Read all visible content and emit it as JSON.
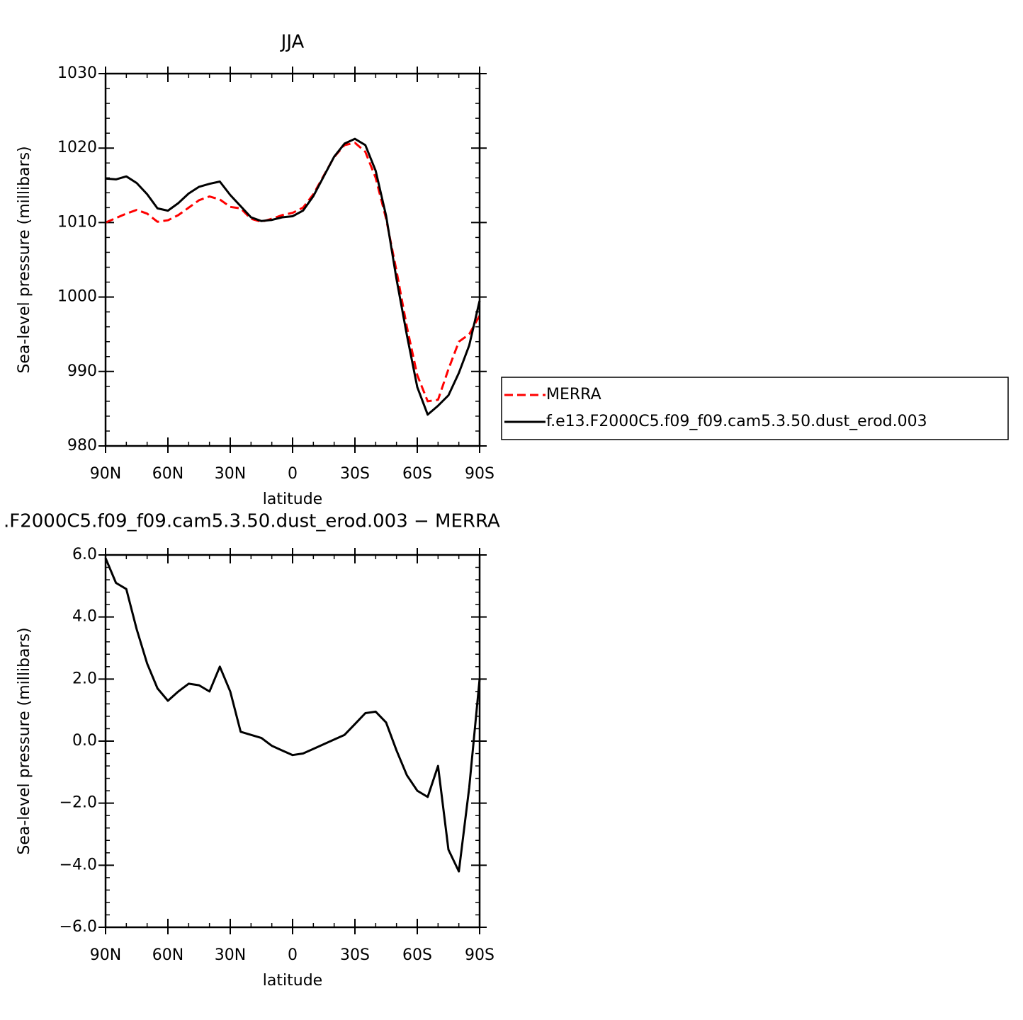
{
  "chart_data": [
    {
      "type": "line",
      "title": "JJA",
      "x_label": "latitude",
      "y_label": "Sea-level pressure (millibars)",
      "x": [
        90,
        85,
        80,
        75,
        70,
        65,
        60,
        55,
        50,
        45,
        40,
        35,
        30,
        25,
        20,
        15,
        10,
        5,
        0,
        -5,
        -10,
        -15,
        -20,
        -25,
        -30,
        -35,
        -40,
        -45,
        -50,
        -55,
        -60,
        -65,
        -70,
        -75,
        -80,
        -85,
        -90
      ],
      "series": [
        {
          "name": "MERRA",
          "color": "#ff0000",
          "line_style": "dashed",
          "values": [
            1010,
            1010.6,
            1011.2,
            1011.7,
            1011.2,
            1010.1,
            1010.3,
            1011,
            1012,
            1013,
            1013.5,
            1013.1,
            1012.1,
            1011.9,
            1010.5,
            1010.1,
            1010.5,
            1011,
            1011.3,
            1012,
            1013.8,
            1016.3,
            1018.8,
            1020.4,
            1020.7,
            1019.5,
            1016,
            1010.5,
            1003.5,
            996,
            989.5,
            986,
            986.2,
            990.3,
            994,
            995,
            997.5
          ]
        },
        {
          "name": "f.e13.F2000C5.f09_f09.cam5.3.50.dust_erod.003",
          "color": "#000000",
          "line_style": "solid",
          "values": [
            1015.9,
            1015.8,
            1016.2,
            1015.3,
            1013.8,
            1011.9,
            1011.6,
            1012.6,
            1013.9,
            1014.8,
            1015.2,
            1015.5,
            1013.7,
            1012.2,
            1010.7,
            1010.2,
            1010.35,
            1010.7,
            1010.85,
            1011.6,
            1013.55,
            1016.2,
            1018.85,
            1020.6,
            1021.25,
            1020.4,
            1016.95,
            1010.9,
            1002.4,
            994.9,
            987.9,
            984.2,
            985.4,
            986.8,
            989.8,
            993.5,
            999.5
          ]
        }
      ],
      "xlim": [
        90,
        -90
      ],
      "xticks": [
        {
          "value": 90,
          "label": "90N"
        },
        {
          "value": 60,
          "label": "60N"
        },
        {
          "value": 30,
          "label": "30N"
        },
        0,
        {
          "value": -30,
          "label": "30S"
        },
        {
          "value": -60,
          "label": "60S"
        },
        {
          "value": -90,
          "label": "90S"
        }
      ],
      "ylim": [
        980,
        1030
      ],
      "yticks": [
        980,
        990,
        1000,
        1010,
        1020,
        1030
      ],
      "legend": "right"
    },
    {
      "type": "line",
      "title": ".F2000C5.f09_f09.cam5.3.50.dust_erod.003 − MERRA",
      "x_label": "latitude",
      "y_label": "Sea-level pressure (millibars)",
      "x": [
        90,
        85,
        80,
        75,
        70,
        65,
        60,
        55,
        50,
        45,
        40,
        35,
        30,
        25,
        20,
        15,
        10,
        5,
        0,
        -5,
        -10,
        -15,
        -20,
        -25,
        -30,
        -35,
        -40,
        -45,
        -50,
        -55,
        -60,
        -65,
        -70,
        -75,
        -80,
        -85,
        -90
      ],
      "values": [
        5.9,
        5.1,
        4.9,
        3.6,
        2.5,
        1.7,
        1.3,
        1.6,
        1.85,
        1.8,
        1.6,
        2.4,
        1.6,
        0.3,
        0.2,
        0.1,
        -0.15,
        -0.3,
        -0.45,
        -0.4,
        -0.25,
        -0.1,
        0.05,
        0.2,
        0.55,
        0.9,
        0.95,
        0.6,
        -0.3,
        -1.1,
        -1.6,
        -1.8,
        -0.8,
        -3.5,
        -4.2,
        -1.5,
        2
      ],
      "color": "#000000",
      "xlim": [
        90,
        -90
      ],
      "xticks": [
        {
          "value": 90,
          "label": "90N"
        },
        {
          "value": 60,
          "label": "60N"
        },
        {
          "value": 30,
          "label": "30N"
        },
        0,
        {
          "value": -30,
          "label": "30S"
        },
        {
          "value": -60,
          "label": "60S"
        },
        {
          "value": -90,
          "label": "90S"
        }
      ],
      "ylim": [
        -6,
        6
      ],
      "yticks": [
        {
          "value": -6,
          "label": "−6.0"
        },
        {
          "value": -4,
          "label": "−4.0"
        },
        {
          "value": -2,
          "label": "−2.0"
        },
        {
          "value": 0,
          "label": "0.0"
        },
        {
          "value": 2,
          "label": "2.0"
        },
        {
          "value": 4,
          "label": "4.0"
        },
        {
          "value": 6,
          "label": "6.0"
        }
      ]
    }
  ]
}
